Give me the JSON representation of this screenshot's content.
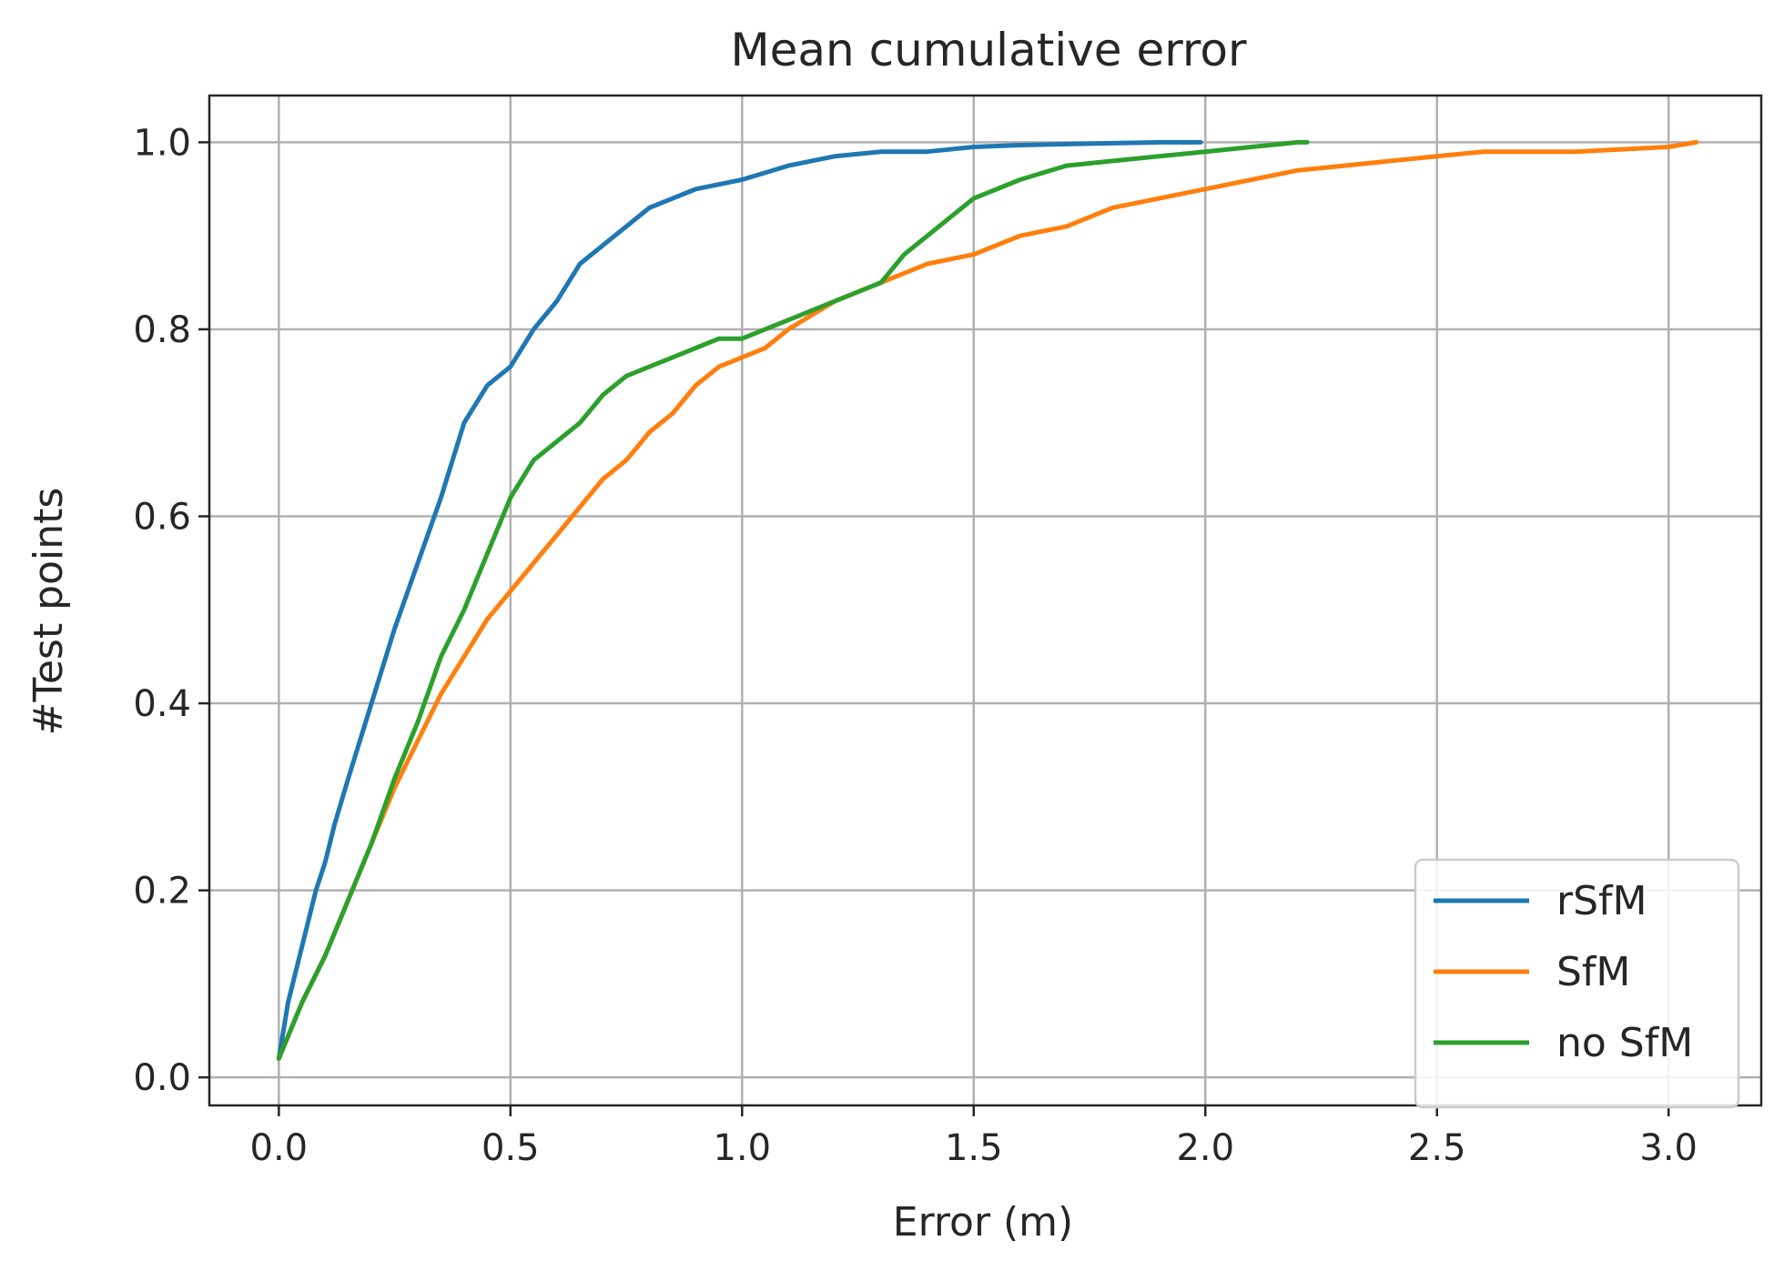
{
  "chart_data": {
    "type": "line",
    "title": "Mean cumulative error",
    "xlabel": "Error (m)",
    "ylabel": "#Test points",
    "xlim": [
      -0.15,
      3.2
    ],
    "ylim": [
      -0.03,
      1.05
    ],
    "xticks": [
      0.0,
      0.5,
      1.0,
      1.5,
      2.0,
      2.5,
      3.0
    ],
    "xtick_labels": [
      "0.0",
      "0.5",
      "1.0",
      "1.5",
      "2.0",
      "2.5",
      "3.0"
    ],
    "yticks": [
      0.0,
      0.2,
      0.4,
      0.6,
      0.8,
      1.0
    ],
    "ytick_labels": [
      "0.0",
      "0.2",
      "0.4",
      "0.6",
      "0.8",
      "1.0"
    ],
    "grid": true,
    "legend_position": "bottom-right",
    "series": [
      {
        "name": "rSfM",
        "color": "#1f77b4",
        "x": [
          0.0,
          0.02,
          0.05,
          0.08,
          0.1,
          0.12,
          0.15,
          0.2,
          0.25,
          0.3,
          0.35,
          0.4,
          0.45,
          0.5,
          0.55,
          0.6,
          0.65,
          0.7,
          0.75,
          0.8,
          0.85,
          0.9,
          1.0,
          1.1,
          1.2,
          1.3,
          1.4,
          1.5,
          1.6,
          1.7,
          1.8,
          1.9,
          1.99
        ],
        "y": [
          0.02,
          0.08,
          0.14,
          0.2,
          0.23,
          0.27,
          0.32,
          0.4,
          0.48,
          0.55,
          0.62,
          0.7,
          0.74,
          0.76,
          0.8,
          0.83,
          0.87,
          0.89,
          0.91,
          0.93,
          0.94,
          0.95,
          0.96,
          0.975,
          0.985,
          0.99,
          0.99,
          0.995,
          0.997,
          0.998,
          0.999,
          1.0,
          1.0
        ]
      },
      {
        "name": "SfM",
        "color": "#ff7f0e",
        "x": [
          0.0,
          0.05,
          0.1,
          0.15,
          0.2,
          0.25,
          0.3,
          0.35,
          0.4,
          0.45,
          0.5,
          0.55,
          0.6,
          0.65,
          0.7,
          0.75,
          0.8,
          0.85,
          0.9,
          0.95,
          1.0,
          1.05,
          1.1,
          1.2,
          1.3,
          1.4,
          1.5,
          1.6,
          1.7,
          1.8,
          1.9,
          2.0,
          2.1,
          2.2,
          2.3,
          2.4,
          2.5,
          2.6,
          2.8,
          3.0,
          3.06
        ],
        "y": [
          0.02,
          0.08,
          0.13,
          0.19,
          0.25,
          0.31,
          0.36,
          0.41,
          0.45,
          0.49,
          0.52,
          0.55,
          0.58,
          0.61,
          0.64,
          0.66,
          0.69,
          0.71,
          0.74,
          0.76,
          0.77,
          0.78,
          0.8,
          0.83,
          0.85,
          0.87,
          0.88,
          0.9,
          0.91,
          0.93,
          0.94,
          0.95,
          0.96,
          0.97,
          0.975,
          0.98,
          0.985,
          0.99,
          0.99,
          0.995,
          1.0
        ]
      },
      {
        "name": "no SfM",
        "color": "#2ca02c",
        "x": [
          0.0,
          0.05,
          0.1,
          0.15,
          0.2,
          0.25,
          0.3,
          0.35,
          0.4,
          0.45,
          0.5,
          0.55,
          0.6,
          0.65,
          0.7,
          0.75,
          0.8,
          0.85,
          0.9,
          0.95,
          1.0,
          1.05,
          1.1,
          1.2,
          1.3,
          1.35,
          1.4,
          1.45,
          1.5,
          1.55,
          1.6,
          1.7,
          1.8,
          1.9,
          2.0,
          2.1,
          2.2,
          2.22
        ],
        "y": [
          0.02,
          0.08,
          0.13,
          0.19,
          0.25,
          0.32,
          0.38,
          0.45,
          0.5,
          0.56,
          0.62,
          0.66,
          0.68,
          0.7,
          0.73,
          0.75,
          0.76,
          0.77,
          0.78,
          0.79,
          0.79,
          0.8,
          0.81,
          0.83,
          0.85,
          0.88,
          0.9,
          0.92,
          0.94,
          0.95,
          0.96,
          0.975,
          0.98,
          0.985,
          0.99,
          0.995,
          1.0,
          1.0
        ]
      }
    ]
  }
}
